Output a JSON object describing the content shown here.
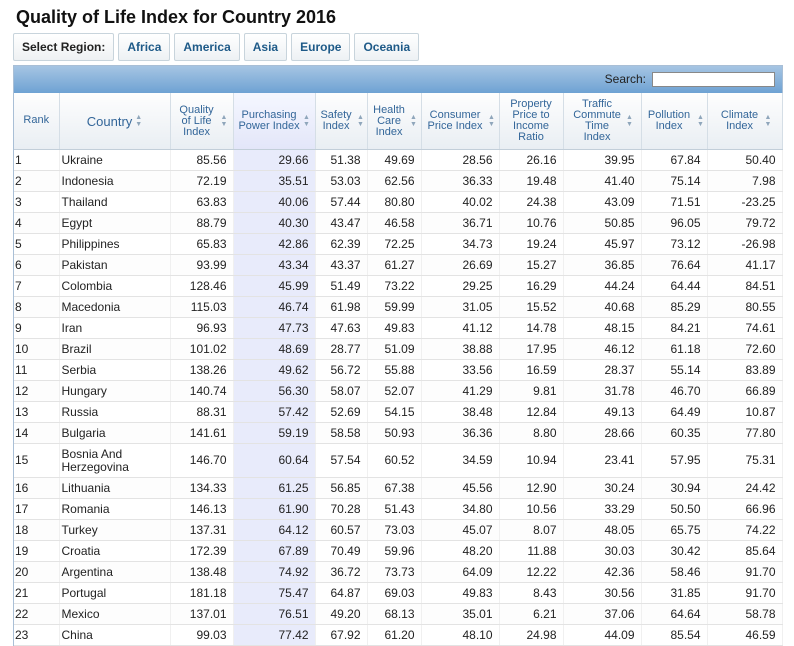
{
  "page": {
    "title": "Quality of Life Index for Country 2016"
  },
  "regions": {
    "label": "Select Region:",
    "buttons": [
      "Africa",
      "America",
      "Asia",
      "Europe",
      "Oceania"
    ]
  },
  "search": {
    "label": "Search:",
    "value": ""
  },
  "table": {
    "sorted_column": "Purchasing Power Index",
    "columns": [
      "Rank",
      "Country",
      "Quality of Life Index",
      "Purchasing Power Index",
      "Safety Index",
      "Health Care Index",
      "Consumer Price Index",
      "Property Price to Income Ratio",
      "Traffic Commute Time Index",
      "Pollution Index",
      "Climate Index"
    ],
    "rows": [
      [
        "1",
        "Ukraine",
        "85.56",
        "29.66",
        "51.38",
        "49.69",
        "28.56",
        "26.16",
        "39.95",
        "67.84",
        "50.40"
      ],
      [
        "2",
        "Indonesia",
        "72.19",
        "35.51",
        "53.03",
        "62.56",
        "36.33",
        "19.48",
        "41.40",
        "75.14",
        "7.98"
      ],
      [
        "3",
        "Thailand",
        "63.83",
        "40.06",
        "57.44",
        "80.80",
        "40.02",
        "24.38",
        "43.09",
        "71.51",
        "-23.25"
      ],
      [
        "4",
        "Egypt",
        "88.79",
        "40.30",
        "43.47",
        "46.58",
        "36.71",
        "10.76",
        "50.85",
        "96.05",
        "79.72"
      ],
      [
        "5",
        "Philippines",
        "65.83",
        "42.86",
        "62.39",
        "72.25",
        "34.73",
        "19.24",
        "45.97",
        "73.12",
        "-26.98"
      ],
      [
        "6",
        "Pakistan",
        "93.99",
        "43.34",
        "43.37",
        "61.27",
        "26.69",
        "15.27",
        "36.85",
        "76.64",
        "41.17"
      ],
      [
        "7",
        "Colombia",
        "128.46",
        "45.99",
        "51.49",
        "73.22",
        "29.25",
        "16.29",
        "44.24",
        "64.44",
        "84.51"
      ],
      [
        "8",
        "Macedonia",
        "115.03",
        "46.74",
        "61.98",
        "59.99",
        "31.05",
        "15.52",
        "40.68",
        "85.29",
        "80.55"
      ],
      [
        "9",
        "Iran",
        "96.93",
        "47.73",
        "47.63",
        "49.83",
        "41.12",
        "14.78",
        "48.15",
        "84.21",
        "74.61"
      ],
      [
        "10",
        "Brazil",
        "101.02",
        "48.69",
        "28.77",
        "51.09",
        "38.88",
        "17.95",
        "46.12",
        "61.18",
        "72.60"
      ],
      [
        "11",
        "Serbia",
        "138.26",
        "49.62",
        "56.72",
        "55.88",
        "33.56",
        "16.59",
        "28.37",
        "55.14",
        "83.89"
      ],
      [
        "12",
        "Hungary",
        "140.74",
        "56.30",
        "58.07",
        "52.07",
        "41.29",
        "9.81",
        "31.78",
        "46.70",
        "66.89"
      ],
      [
        "13",
        "Russia",
        "88.31",
        "57.42",
        "52.69",
        "54.15",
        "38.48",
        "12.84",
        "49.13",
        "64.49",
        "10.87"
      ],
      [
        "14",
        "Bulgaria",
        "141.61",
        "59.19",
        "58.58",
        "50.93",
        "36.36",
        "8.80",
        "28.66",
        "60.35",
        "77.80"
      ],
      [
        "15",
        "Bosnia And Herzegovina",
        "146.70",
        "60.64",
        "57.54",
        "60.52",
        "34.59",
        "10.94",
        "23.41",
        "57.95",
        "75.31"
      ],
      [
        "16",
        "Lithuania",
        "134.33",
        "61.25",
        "56.85",
        "67.38",
        "45.56",
        "12.90",
        "30.24",
        "30.94",
        "24.42"
      ],
      [
        "17",
        "Romania",
        "146.13",
        "61.90",
        "70.28",
        "51.43",
        "34.80",
        "10.56",
        "33.29",
        "50.50",
        "66.96"
      ],
      [
        "18",
        "Turkey",
        "137.31",
        "64.12",
        "60.57",
        "73.03",
        "45.07",
        "8.07",
        "48.05",
        "65.75",
        "74.22"
      ],
      [
        "19",
        "Croatia",
        "172.39",
        "67.89",
        "70.49",
        "59.96",
        "48.20",
        "11.88",
        "30.03",
        "30.42",
        "85.64"
      ],
      [
        "20",
        "Argentina",
        "138.48",
        "74.92",
        "36.72",
        "73.73",
        "64.09",
        "12.22",
        "42.36",
        "58.46",
        "91.70"
      ],
      [
        "21",
        "Portugal",
        "181.18",
        "75.47",
        "64.87",
        "69.03",
        "49.83",
        "8.43",
        "30.56",
        "31.85",
        "91.70"
      ],
      [
        "22",
        "Mexico",
        "137.01",
        "76.51",
        "49.20",
        "68.13",
        "35.01",
        "6.21",
        "37.06",
        "64.64",
        "58.78"
      ],
      [
        "23",
        "China",
        "99.03",
        "77.42",
        "67.92",
        "61.20",
        "48.10",
        "24.98",
        "44.09",
        "85.54",
        "46.59"
      ]
    ]
  }
}
